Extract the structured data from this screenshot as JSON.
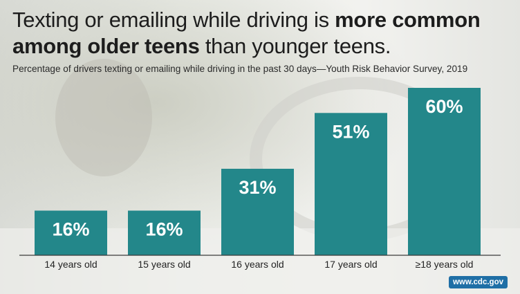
{
  "header": {
    "title_part1": "Texting or emailing while driving is ",
    "title_bold1": "more common",
    "title_bold2": "among older teens",
    "title_part2": " than younger teens.",
    "subtitle": "Percentage of drivers texting or emailing while driving in the past 30 days—Youth Risk Behavior Survey, 2019"
  },
  "credit": "www.cdc.gov",
  "colors": {
    "bar": "#23878a",
    "bar_label": "#ffffff",
    "axis_line": "#3a3a3a",
    "credit_bg": "#1f6fa6"
  },
  "chart_data": {
    "type": "bar",
    "categories": [
      "14 years old",
      "15 years old",
      "16 years old",
      "17 years old",
      "≥18 years old"
    ],
    "values": [
      16,
      16,
      31,
      51,
      60
    ],
    "value_labels": [
      "16%",
      "16%",
      "31%",
      "51%",
      "60%"
    ],
    "title": "Texting or emailing while driving is more common among older teens than younger teens.",
    "xlabel": "",
    "ylabel": "",
    "ylim": [
      0,
      60
    ],
    "grid": false,
    "legend": "none"
  }
}
